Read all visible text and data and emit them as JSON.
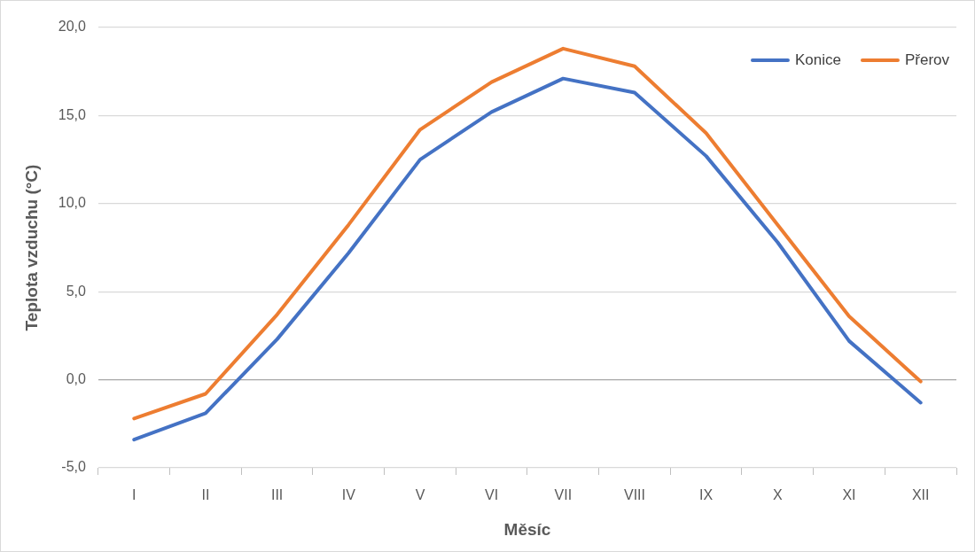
{
  "chart_data": {
    "type": "line",
    "xlabel": "Měsíc",
    "ylabel": "Teplota vzduchu (°C)",
    "categories": [
      "I",
      "II",
      "III",
      "IV",
      "V",
      "VI",
      "VII",
      "VIII",
      "IX",
      "X",
      "XI",
      "XII"
    ],
    "series": [
      {
        "name": "Konice",
        "color": "#4472c4",
        "values": [
          -3.4,
          -1.9,
          2.3,
          7.2,
          12.5,
          15.2,
          17.1,
          16.3,
          12.7,
          7.8,
          2.2,
          -1.3
        ]
      },
      {
        "name": "Přerov",
        "color": "#ed7d31",
        "values": [
          -2.2,
          -0.8,
          3.7,
          8.8,
          14.2,
          16.9,
          18.8,
          17.8,
          14.0,
          8.8,
          3.6,
          -0.1
        ]
      }
    ],
    "ylim": [
      -5,
      20
    ],
    "yticks": [
      {
        "value": -5,
        "label": "-5,0"
      },
      {
        "value": 0,
        "label": "0,0"
      },
      {
        "value": 5,
        "label": "5,0"
      },
      {
        "value": 10,
        "label": "10,0"
      },
      {
        "value": 15,
        "label": "15,0"
      },
      {
        "value": 20,
        "label": "20,0"
      }
    ],
    "grid": "y",
    "legend": "top right",
    "marker": "none",
    "line_style": "solid"
  }
}
